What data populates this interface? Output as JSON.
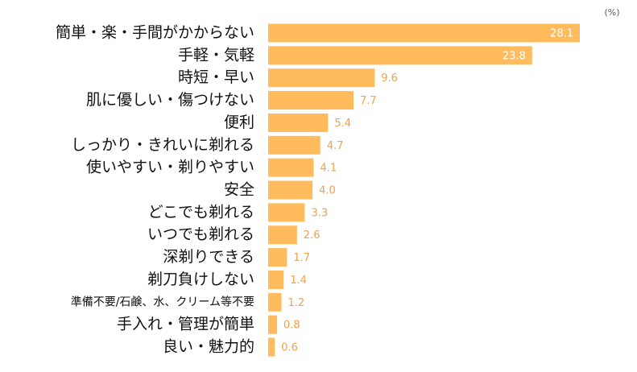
{
  "chart_data": {
    "type": "barh",
    "unit": "(%)",
    "categories": [
      "簡単・楽・手間がかからない",
      "手軽・気軽",
      "時短・早い",
      "肌に優しい・傷つけない",
      "便利",
      "しっかり・きれいに剃れる",
      "使いやすい・剃りやすい",
      "安全",
      "どこでも剃れる",
      "いつでも剃れる",
      "深剃りできる",
      "剃刀負けしない",
      "準備不要/石鹸、水、クリーム等不要",
      "手入れ・管理が簡単",
      "良い・魅力的"
    ],
    "values": [
      28.1,
      23.8,
      9.6,
      7.7,
      5.4,
      4.7,
      4.1,
      4.0,
      3.3,
      2.6,
      1.7,
      1.4,
      1.2,
      0.8,
      0.6
    ],
    "value_labels": [
      "28.1",
      "23.8",
      "9.6",
      "7.7",
      "5.4",
      "4.7",
      "4.1",
      "4.0",
      "3.3",
      "2.6",
      "1.7",
      "1.4",
      "1.2",
      "0.8",
      "0.6"
    ],
    "color": "#ffbb5c",
    "label_color": "#f0a050"
  }
}
